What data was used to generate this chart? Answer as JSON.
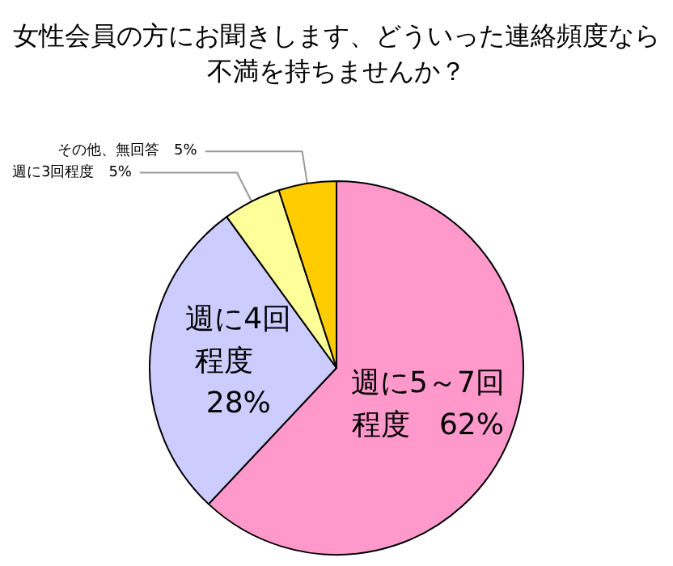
{
  "chart_data": {
    "type": "pie",
    "title": "女性会員の方にお聞きします、どういった連絡頻度なら不満を持ちませんか？",
    "categories": [
      "週に5～7回程度",
      "週に4回程度",
      "週に3回程度",
      "その他、無回答"
    ],
    "values": [
      62,
      28,
      5,
      5
    ],
    "colors": [
      "#ff99cc",
      "#ccccff",
      "#ffff99",
      "#ffcc00"
    ],
    "value_labels": [
      "62%",
      "28%",
      "5%",
      "5%"
    ],
    "legend": false
  }
}
